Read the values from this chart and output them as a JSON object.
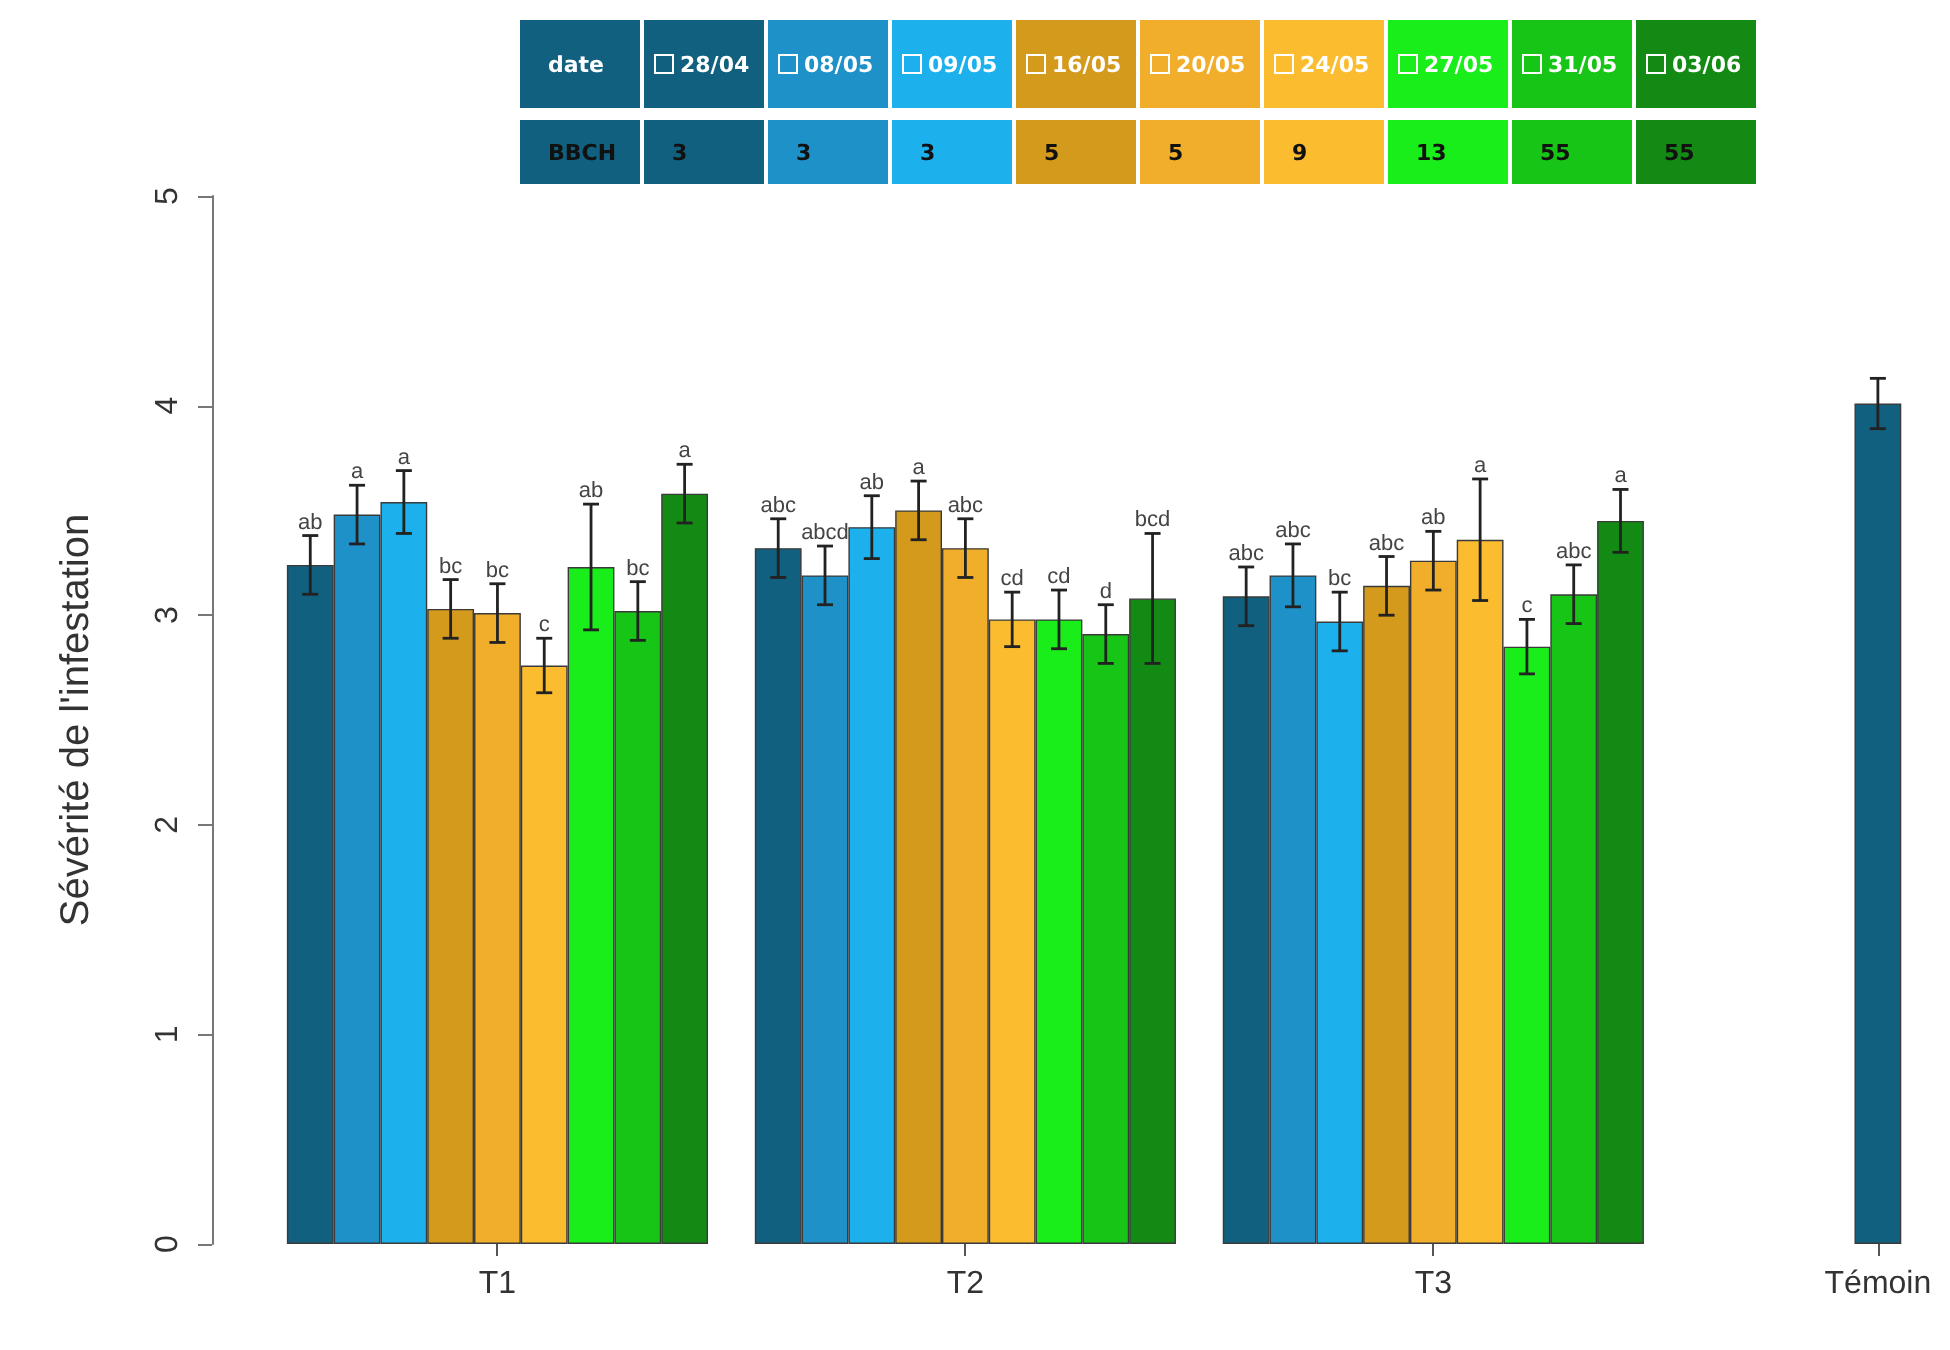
{
  "chart_data": {
    "type": "bar",
    "ylabel": "Sévérité de l'infestation",
    "categories": [
      "T1",
      "T2",
      "T3",
      "Témoin"
    ],
    "legend": "top",
    "legend_title": "date",
    "annotations": [
      "BBCH 3 3 3 5 5 9 13 55 55"
    ],
    "ylim": [
      0,
      5
    ],
    "yticks": [
      0,
      1,
      2,
      3,
      4,
      5
    ],
    "series": [
      {
        "name": "28/04",
        "color": "#11607f",
        "values": [
          3.24,
          3.32,
          3.09,
          null
        ],
        "errors": [
          0.14,
          0.14,
          0.14,
          null
        ],
        "value_labels": [
          "ab",
          "abc",
          "abc",
          null
        ]
      },
      {
        "name": "08/05",
        "color": "#1f91c9",
        "values": [
          3.48,
          3.19,
          3.19,
          null
        ],
        "errors": [
          0.14,
          0.14,
          0.15,
          null
        ],
        "value_labels": [
          "a",
          "abcd",
          "abc",
          null
        ]
      },
      {
        "name": "09/05",
        "color": "#1cb0ec",
        "values": [
          3.54,
          3.42,
          2.97,
          null
        ],
        "errors": [
          0.15,
          0.15,
          0.14,
          null
        ],
        "value_labels": [
          "a",
          "ab",
          "bc",
          null
        ]
      },
      {
        "name": "16/05",
        "color": "#d49a1c",
        "values": [
          3.03,
          3.5,
          3.14,
          null
        ],
        "errors": [
          0.14,
          0.14,
          0.14,
          null
        ],
        "value_labels": [
          "bc",
          "a",
          "abc",
          null
        ]
      },
      {
        "name": "20/05",
        "color": "#f0ae2a",
        "values": [
          3.01,
          3.32,
          3.26,
          null
        ],
        "errors": [
          0.14,
          0.14,
          0.14,
          null
        ],
        "value_labels": [
          "bc",
          "abc",
          "ab",
          null
        ]
      },
      {
        "name": "24/05",
        "color": "#fbbd2f",
        "values": [
          2.76,
          2.98,
          3.36,
          null
        ],
        "errors": [
          0.13,
          0.13,
          0.29,
          null
        ],
        "value_labels": [
          "c",
          "cd",
          "a",
          null
        ]
      },
      {
        "name": "27/05",
        "color": "#1aee1a",
        "values": [
          3.23,
          2.98,
          2.85,
          null
        ],
        "errors": [
          0.3,
          0.14,
          0.13,
          null
        ],
        "value_labels": [
          "ab",
          "cd",
          "c",
          null
        ]
      },
      {
        "name": "31/05",
        "color": "#17c517",
        "values": [
          3.02,
          2.91,
          3.1,
          null
        ],
        "errors": [
          0.14,
          0.14,
          0.14,
          null
        ],
        "value_labels": [
          "bc",
          "d",
          "abc",
          null
        ]
      },
      {
        "name": "03/06",
        "color": "#138a13",
        "values": [
          3.58,
          3.08,
          3.45,
          null
        ],
        "errors": [
          0.14,
          0.31,
          0.15,
          null
        ],
        "value_labels": [
          "a",
          "bcd",
          "a",
          null
        ]
      },
      {
        "color": "#11607f",
        "values": [
          null,
          null,
          null,
          4.01
        ],
        "errors": [
          null,
          null,
          null,
          0.12
        ]
      }
    ]
  }
}
